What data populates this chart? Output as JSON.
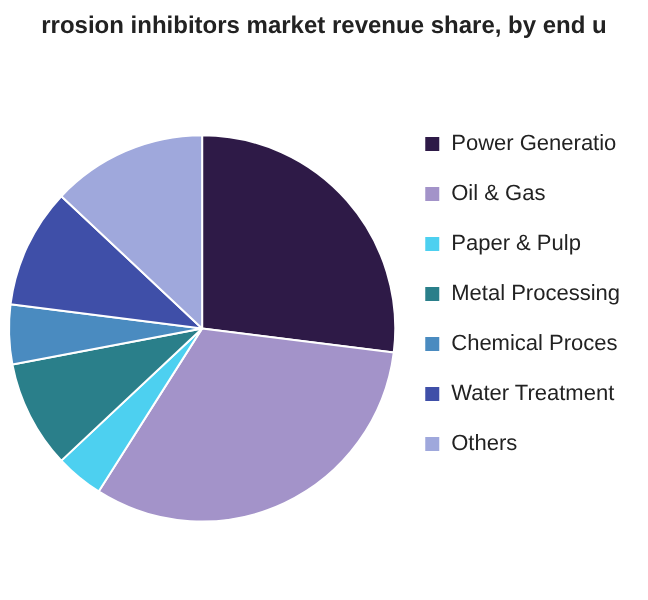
{
  "chart_data": {
    "type": "pie",
    "title": "rrosion inhibitors market revenue share, by end u",
    "categories": [
      "Power Generatio",
      "Oil & Gas",
      "Paper & Pulp",
      "Metal Processing",
      "Chemical Proces",
      "Water Treatment",
      "Others"
    ],
    "values": [
      27,
      32,
      4,
      9,
      5,
      10,
      13
    ],
    "colors": [
      "#2e1a47",
      "#a393c9",
      "#4dd0f0",
      "#2a7f8a",
      "#4a8bc0",
      "#3f4fa8",
      "#9fa8dc"
    ],
    "legend": "right"
  }
}
